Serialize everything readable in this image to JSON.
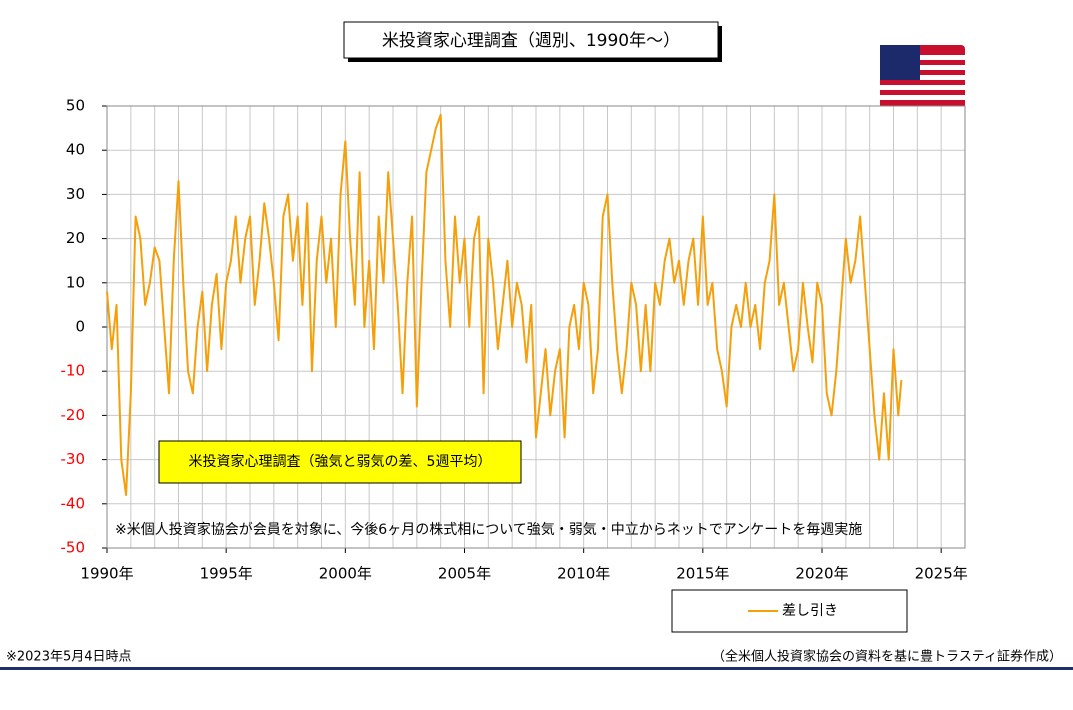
{
  "chart_data": {
    "type": "line",
    "title": "米投資家心理調査（週別、1990年～）",
    "annotation": "米投資家心理調査（強気と弱気の差、5週平均）",
    "note": "※米個人投資家協会が会員を対象に、今後6ヶ月の株式相について強気・弱気・中立からネットでアンケートを毎週実施",
    "footnote_left": "※2023年5月4日時点",
    "footnote_right": "（全米個人投資家協会の資料を基に豊トラスティ証券作成）",
    "xlim": [
      1990,
      2026
    ],
    "ylim": [
      -50,
      50
    ],
    "xticks": [
      {
        "value": 1990,
        "label": "1990年"
      },
      {
        "value": 1995,
        "label": "1995年"
      },
      {
        "value": 2000,
        "label": "2000年"
      },
      {
        "value": 2005,
        "label": "2005年"
      },
      {
        "value": 2010,
        "label": "2010年"
      },
      {
        "value": 2015,
        "label": "2015年"
      },
      {
        "value": 2020,
        "label": "2020年"
      },
      {
        "value": 2025,
        "label": "2025年"
      }
    ],
    "x_minor_grid": [
      1991,
      1992,
      1993,
      1994,
      1996,
      1997,
      1998,
      1999,
      2001,
      2002,
      2003,
      2004,
      2006,
      2007,
      2008,
      2009,
      2011,
      2012,
      2013,
      2014,
      2016,
      2017,
      2018,
      2019,
      2021,
      2022,
      2023,
      2024
    ],
    "yticks": [
      -50,
      -40,
      -30,
      -20,
      -10,
      0,
      10,
      20,
      30,
      40,
      50
    ],
    "negative_tick_color": "#ff0000",
    "grid": true,
    "x": [
      1990,
      1990.2,
      1990.4,
      1990.6,
      1990.8,
      1991,
      1991.2,
      1991.4,
      1991.6,
      1991.8,
      1992,
      1992.2,
      1992.4,
      1992.6,
      1992.8,
      1993,
      1993.2,
      1993.4,
      1993.6,
      1993.8,
      1994,
      1994.2,
      1994.4,
      1994.6,
      1994.8,
      1995,
      1995.2,
      1995.4,
      1995.6,
      1995.8,
      1996,
      1996.2,
      1996.4,
      1996.6,
      1996.8,
      1997,
      1997.2,
      1997.4,
      1997.6,
      1997.8,
      1998,
      1998.2,
      1998.4,
      1998.6,
      1998.8,
      1999,
      1999.2,
      1999.4,
      1999.6,
      1999.8,
      2000,
      2000.2,
      2000.4,
      2000.6,
      2000.8,
      2001,
      2001.2,
      2001.4,
      2001.6,
      2001.8,
      2002,
      2002.2,
      2002.4,
      2002.6,
      2002.8,
      2003,
      2003.2,
      2003.4,
      2003.6,
      2003.8,
      2004,
      2004.2,
      2004.4,
      2004.6,
      2004.8,
      2005,
      2005.2,
      2005.4,
      2005.6,
      2005.8,
      2006,
      2006.2,
      2006.4,
      2006.6,
      2006.8,
      2007,
      2007.2,
      2007.4,
      2007.6,
      2007.8,
      2008,
      2008.2,
      2008.4,
      2008.6,
      2008.8,
      2009,
      2009.2,
      2009.4,
      2009.6,
      2009.8,
      2010,
      2010.2,
      2010.4,
      2010.6,
      2010.8,
      2011,
      2011.2,
      2011.4,
      2011.6,
      2011.8,
      2012,
      2012.2,
      2012.4,
      2012.6,
      2012.8,
      2013,
      2013.2,
      2013.4,
      2013.6,
      2013.8,
      2014,
      2014.2,
      2014.4,
      2014.6,
      2014.8,
      2015,
      2015.2,
      2015.4,
      2015.6,
      2015.8,
      2016,
      2016.2,
      2016.4,
      2016.6,
      2016.8,
      2017,
      2017.2,
      2017.4,
      2017.6,
      2017.8,
      2018,
      2018.2,
      2018.4,
      2018.6,
      2018.8,
      2019,
      2019.2,
      2019.4,
      2019.6,
      2019.8,
      2020,
      2020.2,
      2020.4,
      2020.6,
      2020.8,
      2021,
      2021.2,
      2021.4,
      2021.6,
      2021.8,
      2022,
      2022.2,
      2022.4,
      2022.6,
      2022.8,
      2023,
      2023.2,
      2023.33
    ],
    "series": [
      {
        "name": "差し引き",
        "color": "#f5a00a",
        "values": [
          8,
          -5,
          5,
          -30,
          -38,
          -15,
          25,
          20,
          5,
          10,
          18,
          15,
          0,
          -15,
          15,
          33,
          10,
          -10,
          -15,
          0,
          8,
          -10,
          5,
          12,
          -5,
          10,
          15,
          25,
          10,
          20,
          25,
          5,
          15,
          28,
          20,
          10,
          -3,
          25,
          30,
          15,
          25,
          5,
          28,
          -10,
          15,
          25,
          10,
          20,
          0,
          30,
          42,
          20,
          5,
          35,
          0,
          15,
          -5,
          25,
          10,
          35,
          20,
          5,
          -15,
          10,
          25,
          -18,
          10,
          35,
          40,
          45,
          48,
          15,
          0,
          25,
          10,
          20,
          0,
          20,
          25,
          -15,
          20,
          10,
          -5,
          5,
          15,
          0,
          10,
          5,
          -8,
          5,
          -25,
          -15,
          -5,
          -20,
          -10,
          -5,
          -25,
          0,
          5,
          -5,
          10,
          5,
          -15,
          -5,
          25,
          30,
          10,
          -5,
          -15,
          -5,
          10,
          5,
          -10,
          5,
          -10,
          10,
          5,
          15,
          20,
          10,
          15,
          5,
          15,
          20,
          5,
          25,
          5,
          10,
          -5,
          -10,
          -18,
          0,
          5,
          0,
          10,
          0,
          5,
          -5,
          10,
          15,
          30,
          5,
          10,
          0,
          -10,
          -5,
          10,
          0,
          -8,
          10,
          5,
          -15,
          -20,
          -10,
          5,
          20,
          10,
          15,
          25,
          10,
          -5,
          -20,
          -30,
          -15,
          -30,
          -5,
          -20,
          -12
        ]
      }
    ]
  }
}
